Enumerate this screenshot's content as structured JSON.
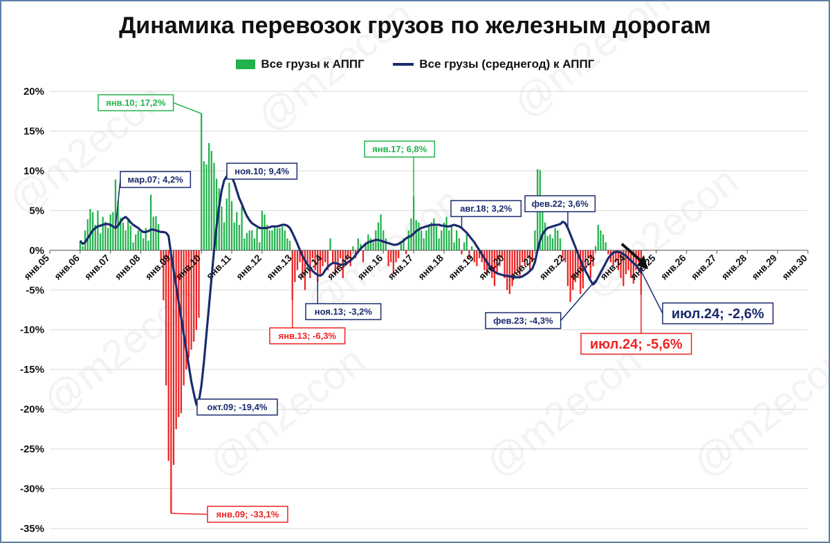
{
  "watermark": "@m2econ",
  "colors": {
    "positive_bar": "#22b24c",
    "negative_bar": "#ee2222",
    "line": "#1a2b6d",
    "grid": "#d9d9d9",
    "border": "#5a7fa8",
    "arrow": "#111111"
  },
  "chart_data": {
    "type": "bar",
    "title": "Динамика перевозок грузов по железным дорогам",
    "series": [
      {
        "name": "Все грузы к АППГ",
        "kind": "bar",
        "start": "2006-01",
        "frequency": "monthly",
        "values": [
          1.0,
          0.5,
          2.5,
          3.9,
          5.2,
          4.8,
          3.2,
          5.0,
          2.1,
          4.2,
          3.6,
          2.8,
          4.5,
          4.8,
          8.9,
          6.2,
          4.1,
          3.5,
          2.5,
          3.9,
          3.1,
          1.0,
          2.0,
          2.5,
          2.3,
          1.5,
          2.8,
          1.2,
          7.0,
          4.2,
          4.3,
          3.3,
          -1.5,
          -6.3,
          -17.0,
          -26.5,
          -33.1,
          -27.0,
          -22.5,
          -21.0,
          -20.5,
          -17.0,
          -15.0,
          -13.5,
          -12.5,
          -11.5,
          -10.0,
          -8.5,
          17.2,
          11.2,
          10.8,
          13.5,
          12.5,
          11.0,
          9.0,
          7.8,
          5.5,
          3.5,
          6.5,
          8.5,
          6.2,
          3.5,
          4.8,
          3.2,
          5.5,
          1.5,
          2.2,
          2.5,
          2.5,
          1.5,
          2.8,
          1.0,
          5.0,
          4.5,
          3.2,
          2.5,
          2.5,
          3.0,
          2.8,
          2.8,
          3.0,
          2.5,
          1.5,
          1.2,
          -6.3,
          -4.0,
          -2.5,
          -1.5,
          -3.5,
          -5.0,
          -2.0,
          -3.5,
          -1.0,
          -2.5,
          -4.0,
          -3.0,
          -2.0,
          -1.5,
          -2.5,
          1.5,
          -1.5,
          -3.0,
          -2.5,
          -1.0,
          -3.5,
          -2.0,
          -1.0,
          -2.0,
          0.5,
          -1.0,
          1.5,
          0.8,
          -1.5,
          1.0,
          2.0,
          1.5,
          1.0,
          2.5,
          3.5,
          4.5,
          2.5,
          1.5,
          -2.0,
          -1.5,
          -3.0,
          -1.5,
          -1.0,
          1.0,
          1.5,
          -0.5,
          2.5,
          4.0,
          6.8,
          3.8,
          3.5,
          2.5,
          1.5,
          2.5,
          3.0,
          3.5,
          4.0,
          3.0,
          1.5,
          2.5,
          3.5,
          4.2,
          2.5,
          3.0,
          1.0,
          2.5,
          1.5,
          -0.5,
          1.0,
          2.0,
          -1.0,
          0.5,
          -1.5,
          -2.0,
          -1.0,
          -1.5,
          -2.5,
          -3.0,
          -2.5,
          -3.5,
          -4.5,
          -3.0,
          -2.0,
          -1.0,
          -3.5,
          -5.0,
          -5.5,
          -4.5,
          -3.0,
          -2.5,
          -3.5,
          -1.5,
          -2.0,
          -1.0,
          -2.5,
          -1.5,
          2.5,
          10.2,
          10.1,
          6.0,
          3.5,
          1.8,
          2.0,
          1.5,
          2.8,
          2.5,
          1.5,
          -1.0,
          -1.5,
          -4.5,
          -6.5,
          -5.0,
          -4.0,
          -3.5,
          -5.5,
          -4.8,
          -2.5,
          -1.0,
          -3.5,
          -2.0,
          0.5,
          3.2,
          2.5,
          2.0,
          1.0,
          -0.5,
          -1.5,
          -2.0,
          -1.5,
          -2.5,
          -3.5,
          -4.5,
          -3.0,
          -2.5,
          -3.5,
          -4.2,
          -2.5,
          -1.5,
          -5.6
        ]
      },
      {
        "name": "Все грузы (среднегод) к АППГ",
        "kind": "line",
        "start": "2006-01",
        "frequency": "monthly",
        "values": [
          1.2,
          0.8,
          1.0,
          1.5,
          2.0,
          2.5,
          2.8,
          3.0,
          3.1,
          3.2,
          3.3,
          3.3,
          3.2,
          3.0,
          2.8,
          3.1,
          3.6,
          4.0,
          4.2,
          3.9,
          3.5,
          3.2,
          3.0,
          2.8,
          2.5,
          2.3,
          2.3,
          2.4,
          2.6,
          2.6,
          2.5,
          2.4,
          2.3,
          2.3,
          2.2,
          1.8,
          -0.5,
          -2.5,
          -4.5,
          -6.5,
          -8.5,
          -10.5,
          -12.5,
          -14.5,
          -16.5,
          -18.0,
          -19.4,
          -19.0,
          -17.0,
          -14.0,
          -10.5,
          -7.0,
          -3.5,
          0.0,
          3.0,
          5.5,
          7.5,
          8.8,
          9.3,
          9.4,
          9.2,
          8.5,
          7.5,
          6.5,
          5.8,
          5.0,
          4.3,
          3.8,
          3.4,
          3.2,
          3.0,
          2.8,
          2.8,
          2.8,
          2.8,
          2.9,
          3.0,
          3.0,
          3.0,
          3.1,
          3.2,
          3.2,
          3.1,
          2.8,
          2.2,
          1.5,
          0.8,
          0.0,
          -0.7,
          -1.3,
          -1.8,
          -2.2,
          -2.6,
          -2.9,
          -3.1,
          -3.2,
          -3.0,
          -2.5,
          -2.1,
          -1.8,
          -1.6,
          -1.6,
          -1.7,
          -1.8,
          -1.8,
          -1.7,
          -1.5,
          -1.3,
          -1.0,
          -0.6,
          -0.2,
          0.2,
          0.5,
          0.8,
          1.0,
          1.1,
          1.2,
          1.3,
          1.3,
          1.2,
          1.1,
          1.0,
          0.9,
          0.8,
          0.7,
          0.7,
          0.8,
          1.0,
          1.2,
          1.5,
          1.7,
          1.8,
          2.1,
          2.4,
          2.6,
          2.8,
          2.9,
          3.0,
          3.1,
          3.2,
          3.2,
          3.2,
          3.2,
          3.1,
          3.1,
          3.0,
          3.0,
          3.1,
          3.2,
          3.1,
          3.0,
          2.8,
          2.5,
          2.2,
          1.8,
          1.4,
          1.0,
          0.5,
          0.0,
          -0.5,
          -1.0,
          -1.5,
          -2.0,
          -2.4,
          -2.7,
          -2.9,
          -3.0,
          -3.1,
          -3.2,
          -3.2,
          -3.3,
          -3.3,
          -3.4,
          -3.4,
          -3.4,
          -3.3,
          -3.1,
          -2.9,
          -2.6,
          -2.3,
          -1.5,
          0.0,
          1.2,
          2.0,
          2.5,
          2.8,
          2.9,
          3.0,
          3.1,
          3.2,
          3.3,
          3.6,
          3.4,
          2.8,
          2.0,
          1.2,
          0.4,
          -0.4,
          -1.2,
          -2.0,
          -2.6,
          -3.2,
          -3.8,
          -4.3,
          -4.0,
          -3.4,
          -2.8,
          -2.2,
          -1.6,
          -1.0,
          -0.6,
          -0.3,
          -0.2,
          -0.2,
          -0.3,
          -0.5,
          -0.7,
          -1.0,
          -1.3,
          -1.6,
          -1.9,
          -2.3,
          -2.6
        ]
      }
    ],
    "x_ticks": [
      "янв.05",
      "янв.06",
      "янв.07",
      "янв.08",
      "янв.09",
      "янв.10",
      "янв.11",
      "янв.12",
      "янв.13",
      "янв.14",
      "янв.15",
      "янв.16",
      "янв.17",
      "янв.18",
      "янв.19",
      "янв.20",
      "янв.21",
      "янв.22",
      "янв.23",
      "янв.24",
      "янв.25",
      "янв.26",
      "янв.27",
      "янв.28",
      "янв.29",
      "янв.30"
    ],
    "y_ticks": [
      "20%",
      "15%",
      "10%",
      "5%",
      "0%",
      "-5%",
      "-10%",
      "-15%",
      "-20%",
      "-25%",
      "-30%",
      "-35%"
    ],
    "ylim": [
      -35,
      20
    ],
    "grid": true,
    "legend": "top-center",
    "annotations": [
      {
        "text": "янв.10; 17,2%",
        "series": "bar",
        "color": "green"
      },
      {
        "text": "янв.17; 6,8%",
        "series": "bar",
        "color": "green"
      },
      {
        "text": "мар.07; 4,2%",
        "series": "line",
        "color": "navy"
      },
      {
        "text": "ноя.10; 9,4%",
        "series": "line",
        "color": "navy"
      },
      {
        "text": "авг.18; 3,2%",
        "series": "line",
        "color": "navy"
      },
      {
        "text": "фев.22; 3,6%",
        "series": "line",
        "color": "navy"
      },
      {
        "text": "ноя.13; -3,2%",
        "series": "line",
        "color": "navy"
      },
      {
        "text": "фев.23; -4,3%",
        "series": "line",
        "color": "navy"
      },
      {
        "text": "окт.09; -19,4%",
        "series": "line",
        "color": "navy"
      },
      {
        "text": "июл.24; -2,6%",
        "series": "line",
        "color": "navy",
        "emphasis": true
      },
      {
        "text": "янв.13; -6,3%",
        "series": "bar",
        "color": "red"
      },
      {
        "text": "янв.09; -33,1%",
        "series": "bar",
        "color": "red"
      },
      {
        "text": "июл.24; -5,6%",
        "series": "bar",
        "color": "red",
        "emphasis": true
      }
    ]
  }
}
